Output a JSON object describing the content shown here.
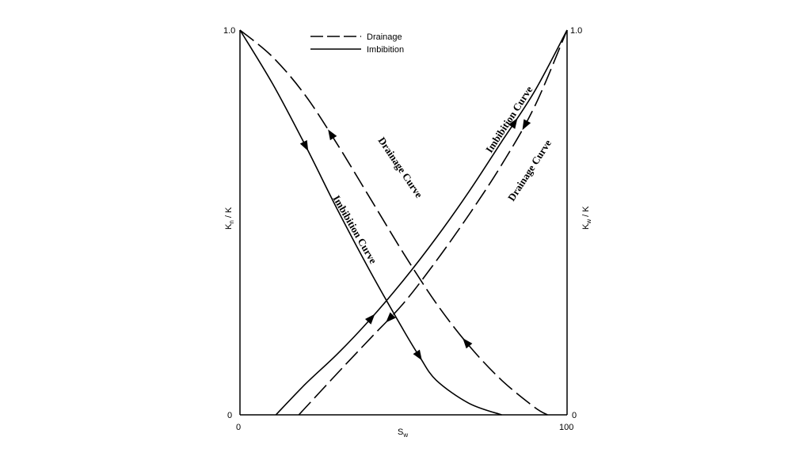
{
  "chart_data": {
    "type": "line",
    "title": "",
    "xlabel": "S",
    "xlabel_sub": "w",
    "ylabel_left": "K",
    "ylabel_left_sub": "n",
    "ylabel_left_tail": " / K",
    "ylabel_right": "K",
    "ylabel_right_sub": "w",
    "ylabel_right_tail": " / K",
    "xlim": [
      0,
      100
    ],
    "ylim": [
      0,
      1.0
    ],
    "x_tick_labels": [
      "0",
      "100"
    ],
    "y_left_tick_labels": [
      "0",
      "1.0"
    ],
    "y_right_tick_labels": [
      "0",
      "1.0"
    ],
    "grid": false,
    "legend_position": "top-center",
    "legend": [
      {
        "label": "Drainage",
        "style": "dashed"
      },
      {
        "label": "Imbibition",
        "style": "solid"
      }
    ],
    "series": [
      {
        "name": "Drainage",
        "axis": "left",
        "style": "dashed",
        "arrow_direction": "backward",
        "x": [
          0,
          10,
          20,
          30,
          40,
          50,
          60,
          70,
          80,
          90,
          94
        ],
        "y": [
          1.0,
          0.93,
          0.83,
          0.7,
          0.56,
          0.42,
          0.29,
          0.18,
          0.09,
          0.02,
          0.0
        ]
      },
      {
        "name": "Imbibition",
        "axis": "left",
        "style": "solid",
        "arrow_direction": "forward",
        "x": [
          0,
          10,
          20,
          30,
          40,
          50,
          55,
          60,
          70,
          80
        ],
        "y": [
          1.0,
          0.86,
          0.7,
          0.53,
          0.37,
          0.22,
          0.15,
          0.09,
          0.03,
          0.0
        ]
      },
      {
        "name": "Imbibition",
        "axis": "right",
        "style": "solid",
        "arrow_direction": "forward",
        "x": [
          11,
          20,
          30,
          40,
          50,
          60,
          70,
          80,
          90,
          100
        ],
        "y": [
          0.0,
          0.08,
          0.16,
          0.25,
          0.35,
          0.46,
          0.58,
          0.71,
          0.84,
          1.0
        ]
      },
      {
        "name": "Drainage",
        "axis": "right",
        "style": "dashed",
        "arrow_direction": "backward",
        "x": [
          18,
          30,
          40,
          50,
          60,
          70,
          80,
          90,
          100
        ],
        "y": [
          0.0,
          0.11,
          0.2,
          0.29,
          0.4,
          0.52,
          0.65,
          0.8,
          1.0
        ]
      }
    ],
    "annotations": [
      {
        "text": "Drainage Curve"
      },
      {
        "text": "Imbibition Curve"
      },
      {
        "text": "Imbibition Curve"
      },
      {
        "text": "Drainage Curve"
      }
    ]
  }
}
